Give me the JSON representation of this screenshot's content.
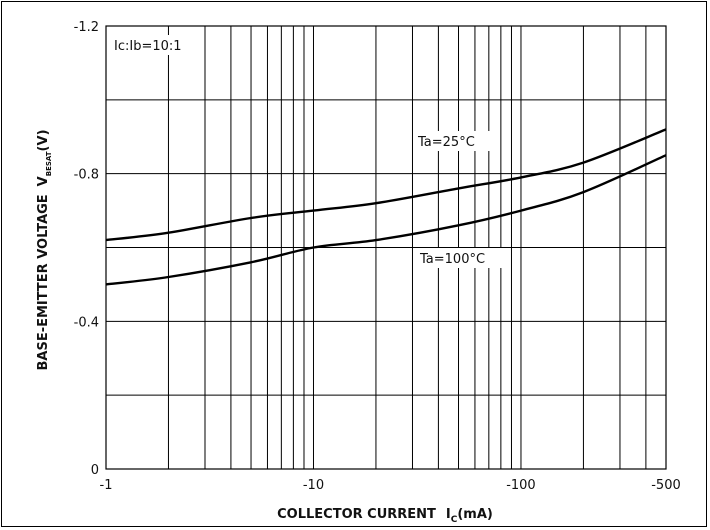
{
  "chart_data": {
    "type": "line",
    "x_scale": "log",
    "xlim": [
      -1,
      -500
    ],
    "ylim": [
      0,
      -1.2
    ],
    "x_ticks": [
      "-1",
      "-10",
      "-100",
      "-500"
    ],
    "y_ticks": [
      "0",
      "-0.4",
      "-0.8",
      "-1.2"
    ],
    "xlabel": "COLLECTOR CURRENT",
    "xlabel_symbol": "I",
    "xlabel_sub": "C",
    "xlabel_unit": "(mA)",
    "ylabel": "BASE-EMITTER VOLTAGE",
    "ylabel_symbol": "V",
    "ylabel_sub": "BESAT",
    "ylabel_unit": "(V)",
    "condition": "Ic:Ib=10:1",
    "grid": true,
    "series": [
      {
        "name": "Ta=25°C",
        "x": [
          -1,
          -2,
          -5,
          -10,
          -20,
          -50,
          -100,
          -200,
          -500
        ],
        "y": [
          -0.62,
          -0.64,
          -0.68,
          -0.7,
          -0.72,
          -0.76,
          -0.79,
          -0.83,
          -0.92
        ]
      },
      {
        "name": "Ta=100°C",
        "x": [
          -1,
          -2,
          -5,
          -10,
          -20,
          -50,
          -100,
          -200,
          -500
        ],
        "y": [
          -0.5,
          -0.52,
          -0.56,
          -0.6,
          -0.62,
          -0.66,
          -0.7,
          -0.75,
          -0.85
        ]
      }
    ]
  }
}
